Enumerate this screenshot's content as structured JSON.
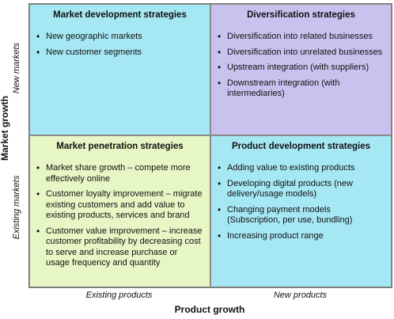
{
  "axes": {
    "y_title": "Market growth",
    "x_title": "Product growth",
    "row_labels": [
      "New markets",
      "Existing markets"
    ],
    "col_labels": [
      "Existing products",
      "New products"
    ]
  },
  "quadrants": {
    "top_left": {
      "title": "Market development strategies",
      "color": "#a6e7f4",
      "items": [
        "New geographic markets",
        "New customer segments"
      ]
    },
    "top_right": {
      "title": "Diversification strategies",
      "color": "#c9c2ef",
      "items": [
        "Diversification into related businesses",
        "Diversification into unrelated businesses",
        "Upstream integration (with suppliers)",
        "Downstream integration (with intermediaries)"
      ]
    },
    "bottom_left": {
      "title": "Market penetration strategies",
      "color": "#e7f6c5",
      "items": [
        "Market share growth – compete more effectively online",
        "Customer loyalty improvement – migrate existing customers and add value to existing products, services and brand",
        "Customer value improvement – increase customer profitability by decreasing cost to serve and increase purchase or usage frequency and quantity"
      ]
    },
    "bottom_right": {
      "title": "Product development strategies",
      "color": "#a6e7f4",
      "items": [
        "Adding value to existing products",
        "Developing digital products (new delivery/usage models)",
        "Changing payment models (Subscription, per use, bundling)",
        "Increasing product range"
      ]
    }
  }
}
